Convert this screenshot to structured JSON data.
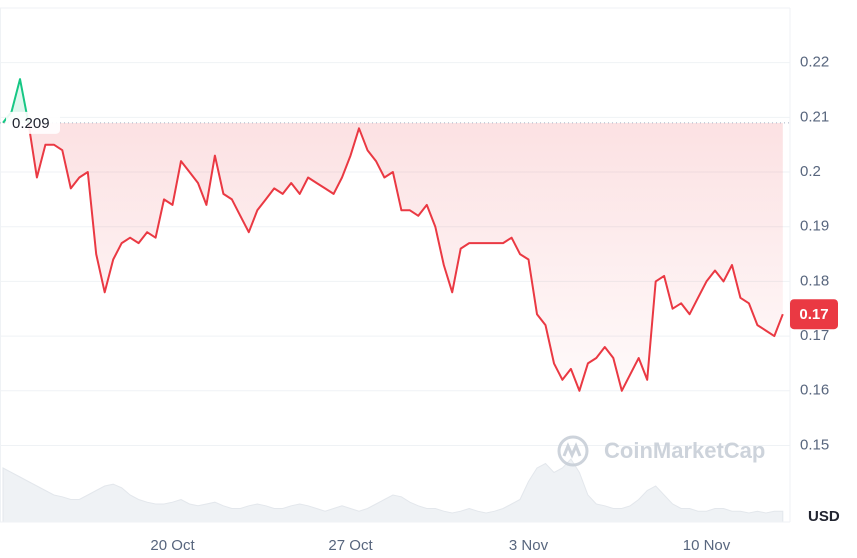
{
  "chart_data": {
    "type": "line",
    "currency": "USD",
    "watermark": "CoinMarketCap",
    "color_up": "#16c784",
    "color_down": "#ea3943",
    "baseline": 0.209,
    "last_value": 0.174,
    "last_value_label": "0.17",
    "categories": [
      null,
      null,
      null,
      null,
      null,
      null,
      null,
      null,
      null,
      null,
      null,
      null,
      null,
      null,
      null,
      null,
      null,
      null,
      null,
      null,
      "20 Oct",
      null,
      null,
      null,
      null,
      null,
      null,
      null,
      null,
      null,
      null,
      null,
      null,
      null,
      null,
      null,
      null,
      null,
      null,
      null,
      null,
      "27 Oct",
      null,
      null,
      null,
      null,
      null,
      null,
      null,
      null,
      null,
      null,
      null,
      null,
      null,
      null,
      null,
      null,
      null,
      null,
      null,
      null,
      "3 Nov",
      null,
      null,
      null,
      null,
      null,
      null,
      null,
      null,
      null,
      null,
      null,
      null,
      null,
      null,
      null,
      null,
      null,
      null,
      null,
      null,
      "10 Nov",
      null,
      null,
      null,
      null,
      null,
      null,
      null,
      null,
      null
    ],
    "values": [
      0.209,
      0.211,
      0.217,
      0.209,
      0.199,
      0.205,
      0.205,
      0.204,
      0.197,
      0.199,
      0.2,
      0.185,
      0.178,
      0.184,
      0.187,
      0.188,
      0.187,
      0.189,
      0.188,
      0.195,
      0.194,
      0.202,
      0.2,
      0.198,
      0.194,
      0.203,
      0.196,
      0.195,
      0.192,
      0.189,
      0.193,
      0.195,
      0.197,
      0.196,
      0.198,
      0.196,
      0.199,
      0.198,
      0.197,
      0.196,
      0.199,
      0.203,
      0.208,
      0.204,
      0.202,
      0.199,
      0.2,
      0.193,
      0.193,
      0.192,
      0.194,
      0.19,
      0.183,
      0.178,
      0.186,
      0.187,
      0.187,
      0.187,
      0.187,
      0.187,
      0.188,
      0.185,
      0.184,
      0.174,
      0.172,
      0.165,
      0.162,
      0.164,
      0.16,
      0.165,
      0.166,
      0.168,
      0.166,
      0.16,
      0.163,
      0.166,
      0.162,
      0.18,
      0.181,
      0.175,
      0.176,
      0.174,
      0.177,
      0.18,
      0.182,
      0.18,
      0.183,
      0.177,
      0.176,
      0.172,
      0.171,
      0.17,
      0.174
    ],
    "volume": [
      60,
      55,
      50,
      45,
      40,
      35,
      30,
      28,
      25,
      25,
      30,
      35,
      40,
      42,
      38,
      30,
      25,
      22,
      20,
      20,
      22,
      25,
      20,
      18,
      20,
      22,
      18,
      15,
      15,
      18,
      20,
      18,
      15,
      15,
      18,
      20,
      18,
      15,
      12,
      15,
      18,
      15,
      12,
      15,
      20,
      25,
      30,
      28,
      22,
      18,
      15,
      15,
      12,
      10,
      12,
      15,
      12,
      10,
      12,
      15,
      20,
      25,
      45,
      60,
      65,
      55,
      60,
      70,
      55,
      30,
      20,
      18,
      15,
      15,
      18,
      25,
      35,
      40,
      30,
      20,
      15,
      15,
      12,
      12,
      15,
      15,
      12,
      12,
      10,
      12,
      10,
      12,
      12
    ],
    "ylim": [
      0.136,
      0.23
    ],
    "yticks": [
      0.15,
      0.16,
      0.17,
      0.18,
      0.19,
      0.2,
      0.21,
      0.22
    ],
    "grid": true
  }
}
